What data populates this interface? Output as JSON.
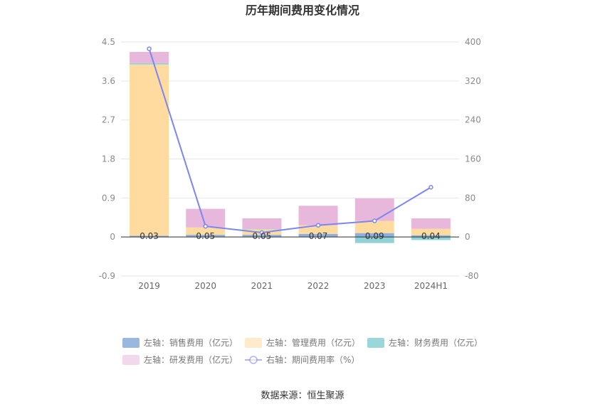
{
  "chart_data": {
    "type": "bar",
    "title": "历年期间费用变化情况",
    "categories": [
      "2019",
      "2020",
      "2021",
      "2022",
      "2023",
      "2024H1"
    ],
    "left_axis": {
      "min": -0.9,
      "max": 4.5,
      "ticks": [
        "4.5",
        "3.6",
        "2.7",
        "1.8",
        "0.9",
        "0",
        "-0.9"
      ]
    },
    "right_axis": {
      "min": -80,
      "max": 400,
      "ticks": [
        "400",
        "320",
        "240",
        "160",
        "80",
        "0",
        "-80"
      ]
    },
    "series": [
      {
        "name": "左轴：销售费用（亿元）",
        "axis": "left",
        "kind": "bar",
        "color": "#8fb0dc",
        "values": [
          0.03,
          0.05,
          0.05,
          0.07,
          0.09,
          0.04
        ],
        "labels": [
          "0.03",
          "0.05",
          "0.05",
          "0.07",
          "0.09",
          "0.04"
        ]
      },
      {
        "name": "左轴：管理费用（亿元）",
        "axis": "left",
        "kind": "bar",
        "color": "#ffdba0",
        "values": [
          3.95,
          0.17,
          0.13,
          0.2,
          0.28,
          0.15
        ]
      },
      {
        "name": "左轴：财务费用（亿元）",
        "axis": "left",
        "kind": "bar",
        "color": "#8fd3d6",
        "values": [
          0.03,
          0.0,
          0.01,
          0.0,
          -0.14,
          -0.07
        ]
      },
      {
        "name": "左轴：研发费用（亿元）",
        "axis": "left",
        "kind": "bar",
        "color": "#e8b8dc",
        "values": [
          0.26,
          0.43,
          0.24,
          0.45,
          0.52,
          0.24
        ]
      },
      {
        "name": "右轴：期间费用率（%）",
        "axis": "right",
        "kind": "line",
        "color": "#7b86f0",
        "values": [
          386,
          22,
          9,
          24,
          33,
          102
        ]
      }
    ],
    "legend_position": "bottom",
    "grid": true
  },
  "source": "数据来源：恒生聚源"
}
